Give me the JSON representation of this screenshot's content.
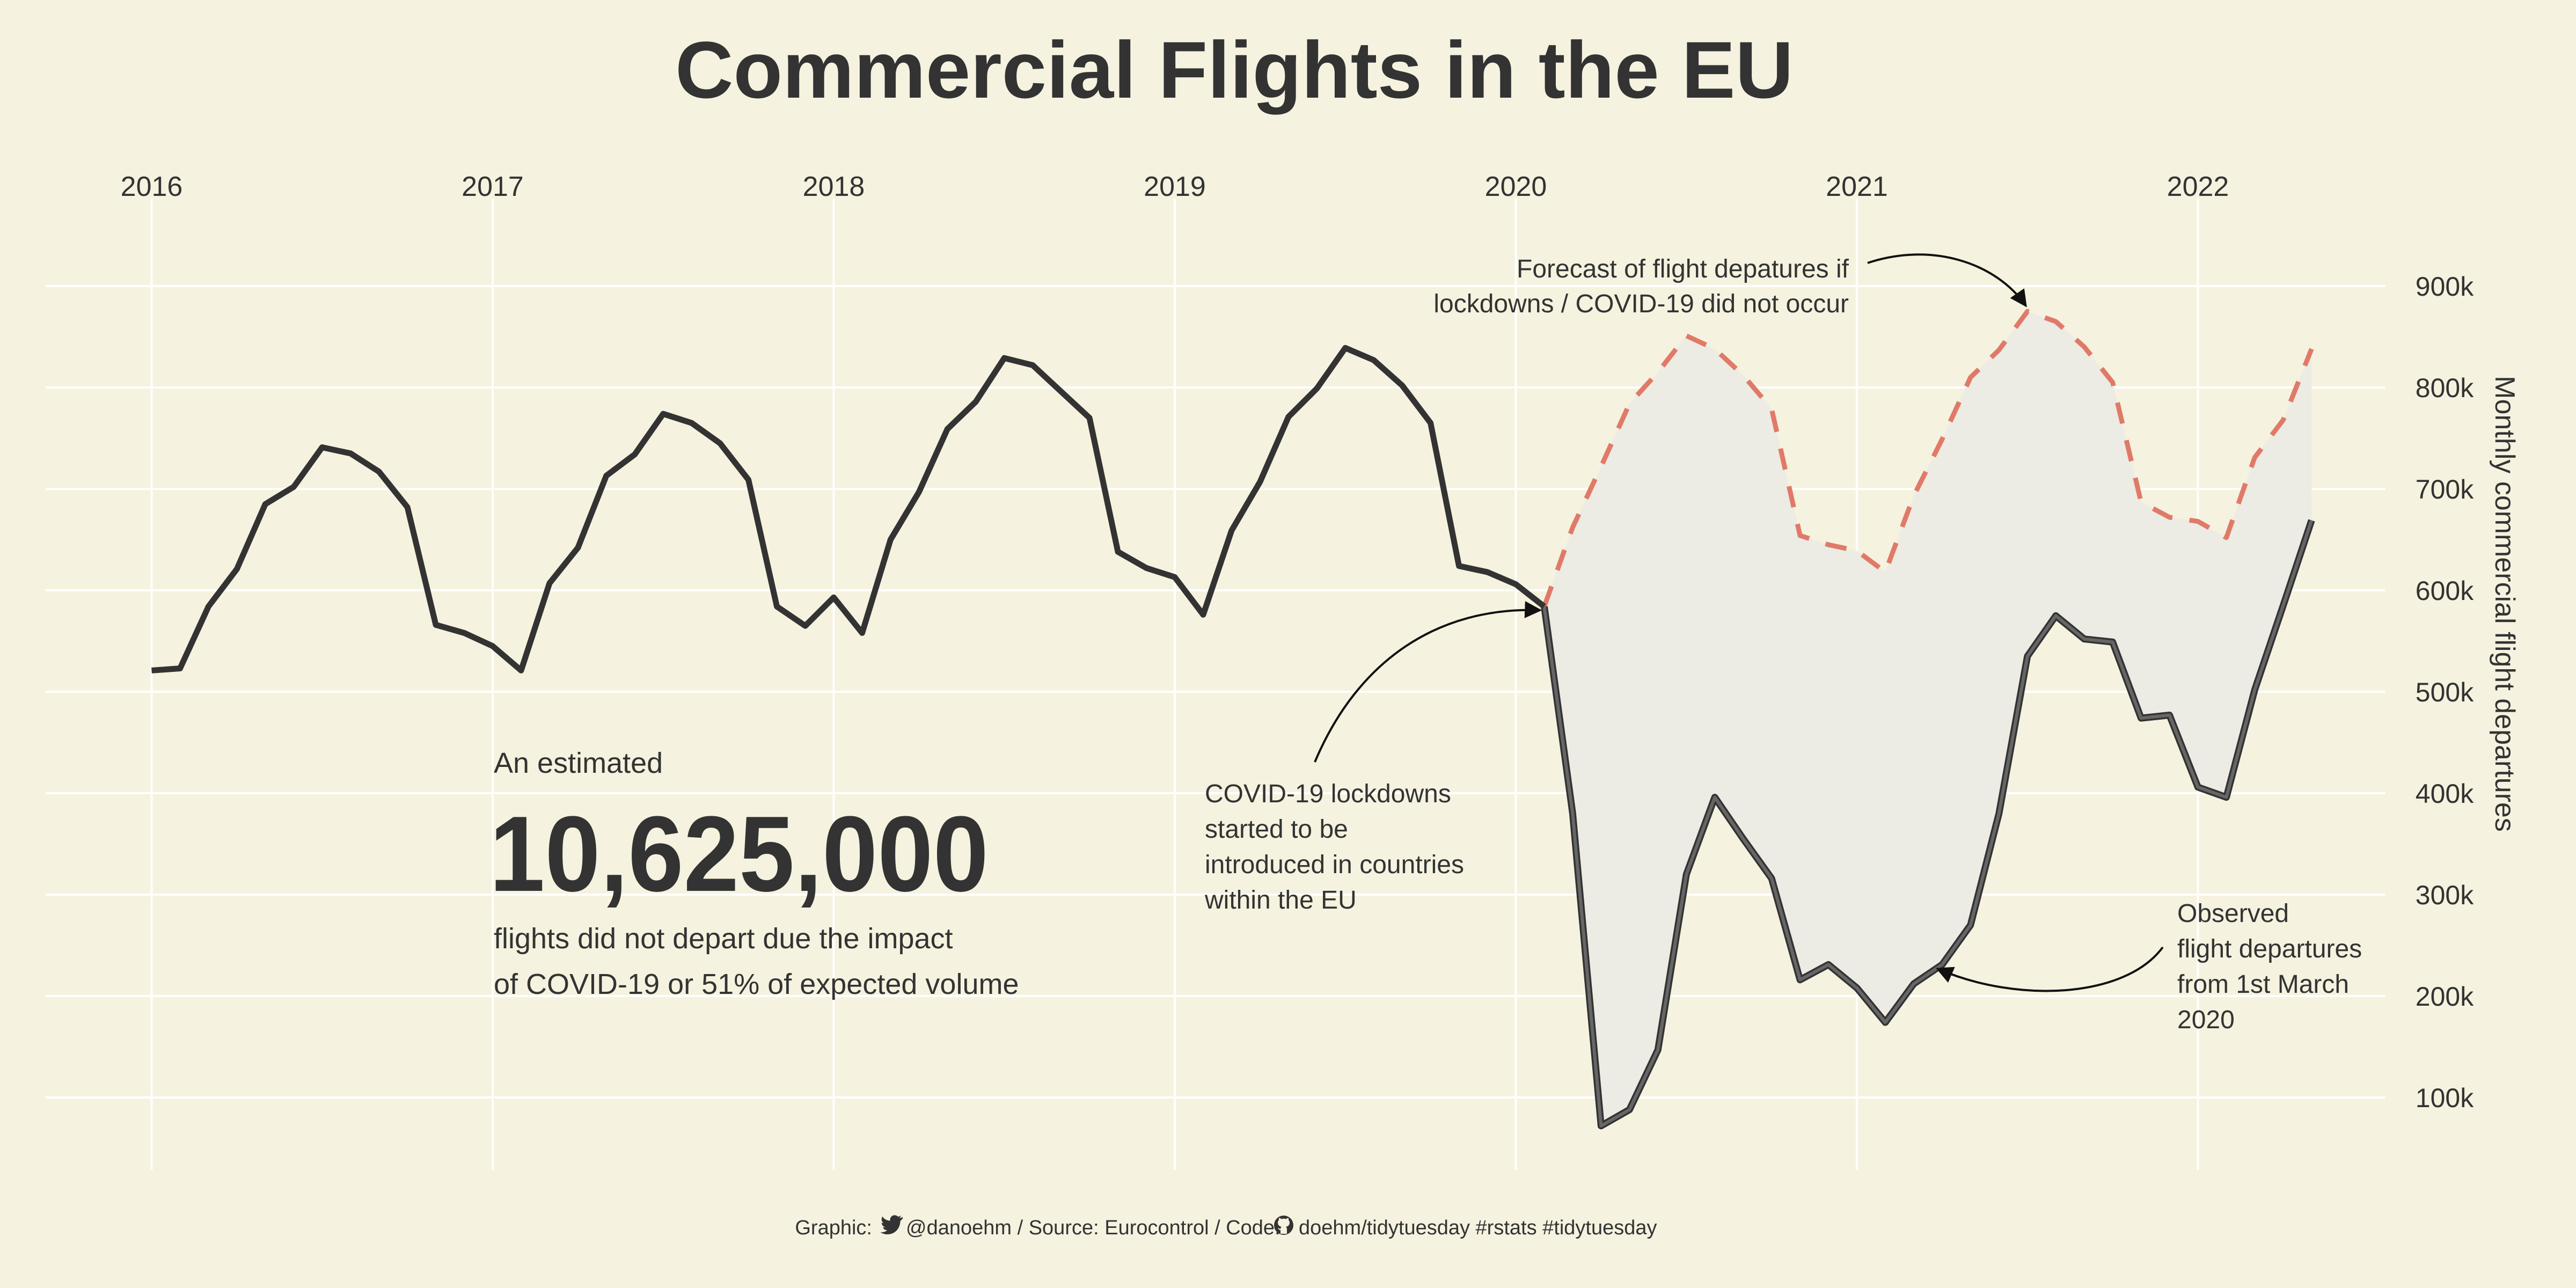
{
  "chart_data": {
    "type": "line",
    "title": "Commercial Flights in the EU",
    "ylabel": "Monthly commercial flight departures",
    "x_ticks": [
      "2016",
      "2017",
      "2018",
      "2019",
      "2020",
      "2021",
      "2022"
    ],
    "y_ticks": [
      "100k",
      "200k",
      "300k",
      "400k",
      "500k",
      "600k",
      "700k",
      "800k",
      "900k"
    ],
    "y_tick_values": [
      100000,
      200000,
      300000,
      400000,
      500000,
      600000,
      700000,
      800000,
      900000
    ],
    "ylim": [
      30000,
      1000000
    ],
    "grid": true,
    "series": [
      {
        "key": "observed",
        "style": "solid",
        "color": "#333333",
        "points": [
          [
            "2016-01",
            521000
          ],
          [
            "2016-02",
            523000
          ],
          [
            "2016-03",
            584000
          ],
          [
            "2016-04",
            621000
          ],
          [
            "2016-05",
            685000
          ],
          [
            "2016-06",
            702000
          ],
          [
            "2016-07",
            741000
          ],
          [
            "2016-08",
            735000
          ],
          [
            "2016-09",
            717000
          ],
          [
            "2016-10",
            682000
          ],
          [
            "2016-11",
            566000
          ],
          [
            "2016-12",
            558000
          ],
          [
            "2017-01",
            545000
          ],
          [
            "2017-02",
            521000
          ],
          [
            "2017-03",
            607000
          ],
          [
            "2017-04",
            642000
          ],
          [
            "2017-05",
            713000
          ],
          [
            "2017-06",
            734000
          ],
          [
            "2017-07",
            774000
          ],
          [
            "2017-08",
            765000
          ],
          [
            "2017-09",
            745000
          ],
          [
            "2017-10",
            709000
          ],
          [
            "2017-11",
            584000
          ],
          [
            "2017-12",
            565000
          ],
          [
            "2018-01",
            593000
          ],
          [
            "2018-02",
            558000
          ],
          [
            "2018-03",
            650000
          ],
          [
            "2018-04",
            697000
          ],
          [
            "2018-05",
            759000
          ],
          [
            "2018-06",
            786000
          ],
          [
            "2018-07",
            829000
          ],
          [
            "2018-08",
            822000
          ],
          [
            "2018-09",
            796000
          ],
          [
            "2018-10",
            770000
          ],
          [
            "2018-11",
            638000
          ],
          [
            "2018-12",
            622000
          ],
          [
            "2019-01",
            613000
          ],
          [
            "2019-02",
            576000
          ],
          [
            "2019-03",
            659000
          ],
          [
            "2019-04",
            707000
          ],
          [
            "2019-05",
            771000
          ],
          [
            "2019-06",
            799000
          ],
          [
            "2019-07",
            839000
          ],
          [
            "2019-08",
            827000
          ],
          [
            "2019-09",
            802000
          ],
          [
            "2019-10",
            765000
          ],
          [
            "2019-11",
            624000
          ],
          [
            "2019-12",
            618000
          ],
          [
            "2020-01",
            606000
          ],
          [
            "2020-02",
            584000
          ]
        ]
      },
      {
        "key": "observed_covid",
        "style": "solid",
        "color": "#666666",
        "points": [
          [
            "2020-02",
            584000
          ],
          [
            "2020-03",
            380000
          ],
          [
            "2020-04",
            72000
          ],
          [
            "2020-05",
            88000
          ],
          [
            "2020-06",
            147000
          ],
          [
            "2020-07",
            320000
          ],
          [
            "2020-08",
            396000
          ],
          [
            "2020-09",
            355000
          ],
          [
            "2020-10",
            316000
          ],
          [
            "2020-11",
            216000
          ],
          [
            "2020-12",
            231000
          ],
          [
            "2021-01",
            208000
          ],
          [
            "2021-02",
            174000
          ],
          [
            "2021-03",
            212000
          ],
          [
            "2021-04",
            231000
          ],
          [
            "2021-05",
            270000
          ],
          [
            "2021-06",
            380000
          ],
          [
            "2021-07",
            535000
          ],
          [
            "2021-08",
            575000
          ],
          [
            "2021-09",
            552000
          ],
          [
            "2021-10",
            549000
          ],
          [
            "2021-11",
            474000
          ],
          [
            "2021-12",
            477000
          ],
          [
            "2022-01",
            406000
          ],
          [
            "2022-02",
            396000
          ],
          [
            "2022-03",
            502000
          ],
          [
            "2022-04",
            585000
          ],
          [
            "2022-05",
            669000
          ]
        ]
      },
      {
        "key": "forecast",
        "style": "dashed",
        "color": "#e07a68",
        "points": [
          [
            "2020-02",
            584000
          ],
          [
            "2020-03",
            662000
          ],
          [
            "2020-04",
            722000
          ],
          [
            "2020-05",
            784000
          ],
          [
            "2020-06",
            815000
          ],
          [
            "2020-07",
            851000
          ],
          [
            "2020-08",
            838000
          ],
          [
            "2020-09",
            812000
          ],
          [
            "2020-10",
            779000
          ],
          [
            "2020-11",
            654000
          ],
          [
            "2020-12",
            645000
          ],
          [
            "2021-01",
            639000
          ],
          [
            "2021-02",
            618000
          ],
          [
            "2021-03",
            693000
          ],
          [
            "2021-04",
            749000
          ],
          [
            "2021-05",
            810000
          ],
          [
            "2021-06",
            837000
          ],
          [
            "2021-07",
            875000
          ],
          [
            "2021-08",
            865000
          ],
          [
            "2021-09",
            840000
          ],
          [
            "2021-10",
            805000
          ],
          [
            "2021-11",
            687000
          ],
          [
            "2021-12",
            672000
          ],
          [
            "2022-01",
            668000
          ],
          [
            "2022-02",
            652000
          ],
          [
            "2022-03",
            731000
          ],
          [
            "2022-04",
            768000
          ],
          [
            "2022-05",
            838000
          ]
        ]
      }
    ],
    "annotations": {
      "forecast": [
        "Forecast of flight depatures if",
        "lockdowns / COVID-19 did not occur"
      ],
      "lockdown": [
        "COVID-19 lockdowns",
        "started to be",
        "introduced in countries",
        "within the EU"
      ],
      "observed": [
        "Observed",
        "flight departures",
        "from 1st March",
        "2020"
      ],
      "estimate_intro": "An estimated",
      "estimate_number": "10,625,000",
      "estimate_detail": [
        "flights did not depart due the impact",
        "of COVID-19 or 51% of expected volume"
      ]
    },
    "caption": {
      "graphic": "Graphic:",
      "handle": "@danoehm / Source: Eurocontrol / Code:",
      "repo": "doehm/tidytuesday #rstats #tidytuesday",
      "twitter_icon": "twitter-icon",
      "github_icon": "github-icon"
    }
  }
}
